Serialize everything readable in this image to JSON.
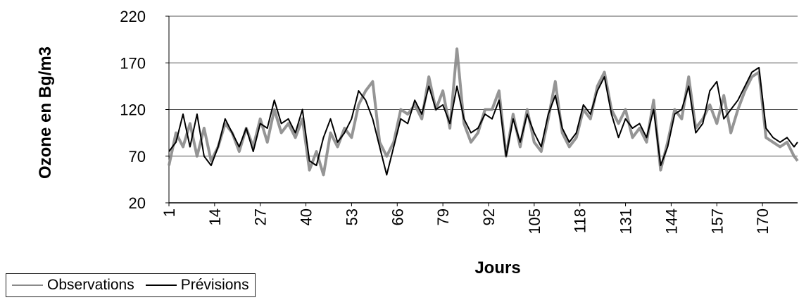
{
  "chart_data": {
    "type": "line",
    "title": "",
    "xlabel": "Jours",
    "ylabel": "Ozone en Bg/m3",
    "ylim": [
      20,
      220
    ],
    "yticks": [
      "20",
      "70",
      "120",
      "170",
      "220"
    ],
    "xticks": [
      "1",
      "14",
      "27",
      "40",
      "53",
      "66",
      "79",
      "92",
      "105",
      "118",
      "131",
      "144",
      "157",
      "170"
    ],
    "xlim": [
      1,
      180
    ],
    "grid": "horizontal",
    "legend_position": "bottom-left",
    "series": [
      {
        "name": "Observations",
        "color": "#8a8a8a",
        "x": [
          1,
          3,
          5,
          7,
          9,
          11,
          13,
          15,
          17,
          19,
          21,
          23,
          25,
          27,
          29,
          31,
          33,
          35,
          37,
          39,
          41,
          43,
          45,
          47,
          49,
          51,
          53,
          55,
          57,
          59,
          61,
          63,
          65,
          67,
          69,
          71,
          73,
          75,
          77,
          79,
          81,
          83,
          85,
          87,
          89,
          91,
          93,
          95,
          97,
          99,
          101,
          103,
          105,
          107,
          109,
          111,
          113,
          115,
          117,
          119,
          121,
          123,
          125,
          127,
          129,
          131,
          133,
          135,
          137,
          139,
          141,
          143,
          145,
          147,
          149,
          151,
          153,
          155,
          157,
          159,
          161,
          163,
          165,
          167,
          169,
          171,
          173,
          175,
          177,
          179,
          180
        ],
        "values": [
          60,
          95,
          80,
          105,
          70,
          100,
          65,
          80,
          105,
          95,
          75,
          100,
          80,
          110,
          85,
          120,
          95,
          105,
          90,
          110,
          55,
          75,
          50,
          95,
          80,
          100,
          90,
          125,
          140,
          150,
          85,
          70,
          85,
          120,
          115,
          125,
          110,
          155,
          120,
          140,
          100,
          185,
          105,
          85,
          95,
          120,
          120,
          140,
          70,
          115,
          80,
          120,
          85,
          75,
          110,
          150,
          95,
          80,
          90,
          120,
          110,
          145,
          160,
          120,
          105,
          120,
          90,
          100,
          85,
          130,
          55,
          85,
          120,
          110,
          155,
          100,
          110,
          125,
          105,
          135,
          95,
          120,
          140,
          155,
          160,
          90,
          85,
          80,
          85,
          70,
          65
        ]
      },
      {
        "name": "Prévisions",
        "color": "#000000",
        "x": [
          1,
          3,
          5,
          7,
          9,
          11,
          13,
          15,
          17,
          19,
          21,
          23,
          25,
          27,
          29,
          31,
          33,
          35,
          37,
          39,
          41,
          43,
          45,
          47,
          49,
          51,
          53,
          55,
          57,
          59,
          61,
          63,
          65,
          67,
          69,
          71,
          73,
          75,
          77,
          79,
          81,
          83,
          85,
          87,
          89,
          91,
          93,
          95,
          97,
          99,
          101,
          103,
          105,
          107,
          109,
          111,
          113,
          115,
          117,
          119,
          121,
          123,
          125,
          127,
          129,
          131,
          133,
          135,
          137,
          139,
          141,
          143,
          145,
          147,
          149,
          151,
          153,
          155,
          157,
          159,
          161,
          163,
          165,
          167,
          169,
          171,
          173,
          175,
          177,
          179,
          180
        ],
        "values": [
          75,
          85,
          115,
          80,
          115,
          70,
          60,
          80,
          110,
          95,
          80,
          100,
          75,
          105,
          100,
          130,
          105,
          110,
          95,
          120,
          65,
          60,
          90,
          110,
          85,
          95,
          110,
          140,
          130,
          110,
          80,
          50,
          80,
          110,
          105,
          130,
          115,
          145,
          120,
          125,
          105,
          145,
          110,
          95,
          100,
          115,
          110,
          130,
          70,
          110,
          85,
          115,
          95,
          80,
          115,
          135,
          100,
          85,
          95,
          125,
          115,
          140,
          155,
          115,
          90,
          110,
          100,
          105,
          90,
          120,
          60,
          80,
          115,
          120,
          145,
          95,
          105,
          140,
          150,
          110,
          120,
          130,
          145,
          160,
          165,
          100,
          90,
          85,
          90,
          80,
          85
        ]
      }
    ]
  },
  "legend": {
    "observations_label": "Observations",
    "previsions_label": "Prévisions"
  }
}
